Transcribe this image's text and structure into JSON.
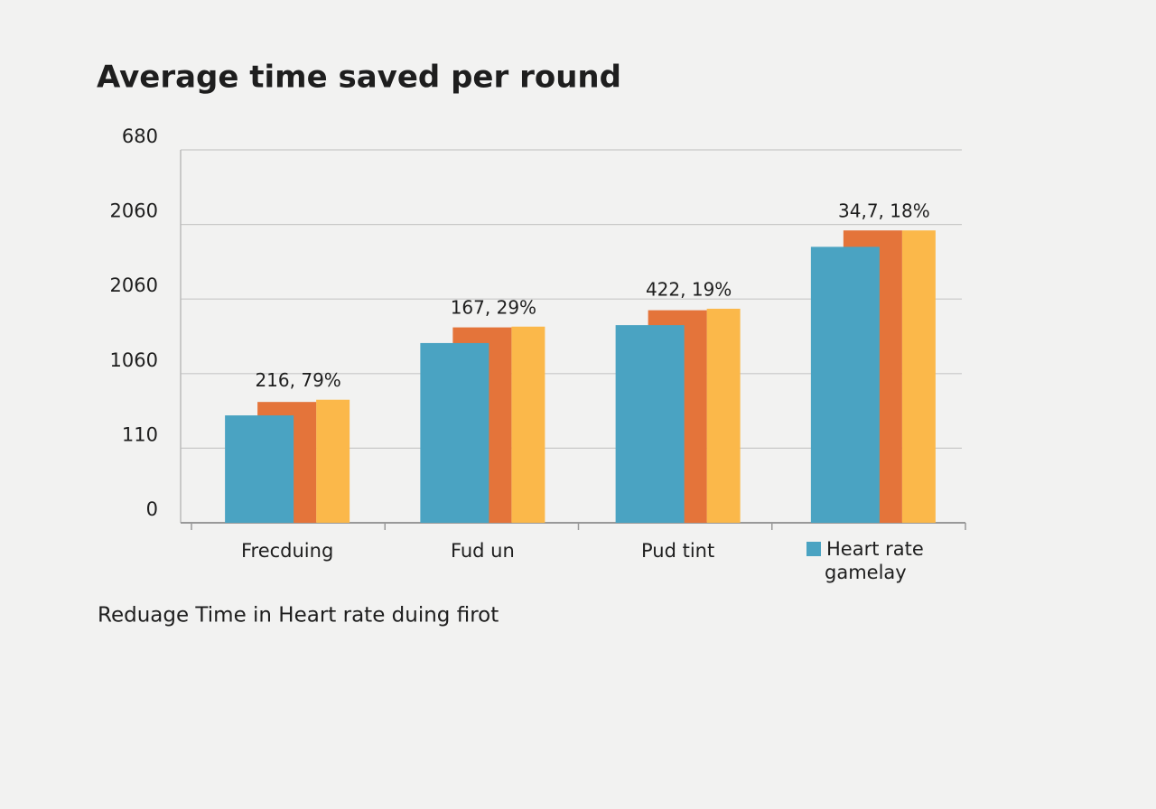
{
  "chart_data": {
    "type": "bar",
    "title": "Average time saved per round",
    "caption": "Reduage Time in Heart rate duing firot",
    "categories": [
      "Frecduing",
      "Fud un",
      "Pud tint",
      null
    ],
    "series": [
      {
        "name": "Heart rate gamelay",
        "color": "#4aa3c2",
        "values": [
          1.44,
          2.41,
          2.65,
          3.7
        ]
      },
      {
        "color": "#e4743a",
        "values": [
          1.62,
          2.62,
          2.85,
          3.92
        ]
      },
      {
        "color": "#fbb84a",
        "values": [
          1.65,
          2.63,
          2.87,
          3.92
        ]
      }
    ],
    "group_labels": [
      "216, 79%",
      "167, 29%",
      "422, 19%",
      "34,7, 18%"
    ],
    "ylim": [
      0,
      5
    ],
    "yticks": [
      {
        "value": 0,
        "label": "0"
      },
      {
        "value": 1,
        "label": "110"
      },
      {
        "value": 2,
        "label": "1060"
      },
      {
        "value": 3,
        "label": "2060"
      },
      {
        "value": 4,
        "label": "2060"
      },
      {
        "value": 5,
        "label": "680"
      }
    ],
    "grid": true,
    "legend": "bottom-right"
  }
}
